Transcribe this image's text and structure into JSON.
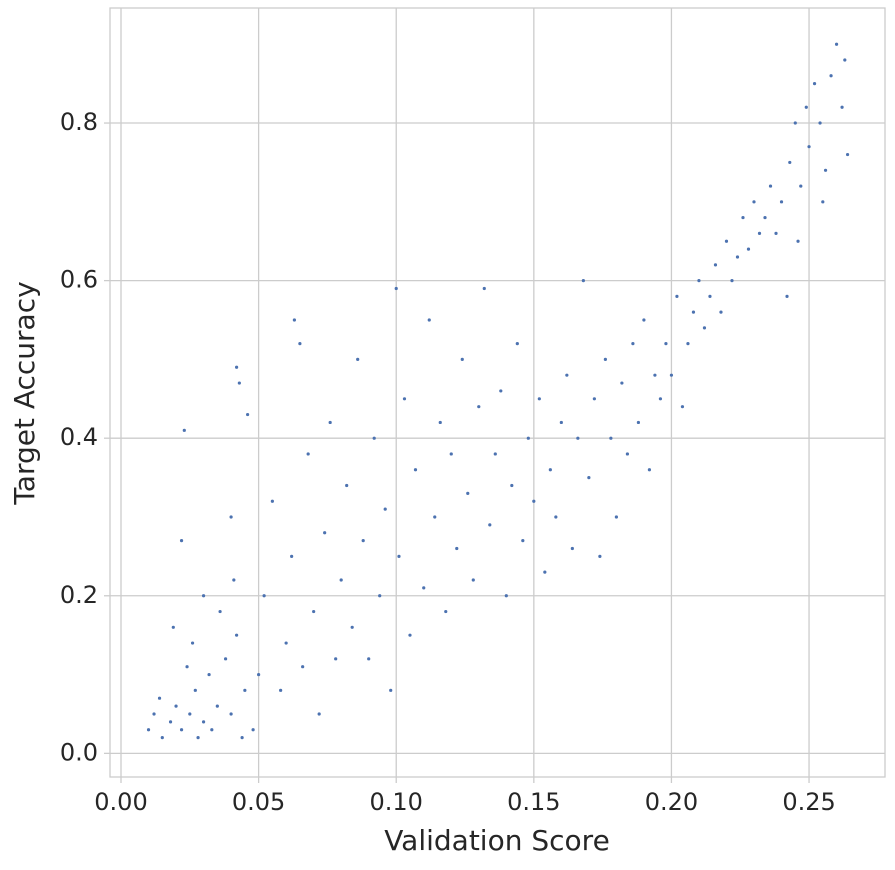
{
  "chart_data": {
    "type": "scatter",
    "xlabel": "Validation Score",
    "ylabel": "Target Accuracy",
    "xlim": [
      -0.004,
      0.2776
    ],
    "ylim": [
      -0.03,
      0.946
    ],
    "xticks": [
      {
        "value": 0,
        "label": "0.00"
      },
      {
        "value": 0.05,
        "label": "0.05"
      },
      {
        "value": 0.1,
        "label": "0.10"
      },
      {
        "value": 0.15,
        "label": "0.15"
      },
      {
        "value": 0.2,
        "label": "0.20"
      },
      {
        "value": 0.25,
        "label": "0.25"
      }
    ],
    "yticks": [
      {
        "value": 0,
        "label": "0.0"
      },
      {
        "value": 0.2,
        "label": "0.2"
      },
      {
        "value": 0.4,
        "label": "0.4"
      },
      {
        "value": 0.6,
        "label": "0.6"
      },
      {
        "value": 0.8,
        "label": "0.8"
      }
    ],
    "grid": true,
    "color": "#4c72b0",
    "x": [
      0.01,
      0.012,
      0.015,
      0.018,
      0.02,
      0.022,
      0.025,
      0.027,
      0.03,
      0.032,
      0.035,
      0.038,
      0.04,
      0.042,
      0.045,
      0.048,
      0.014,
      0.028,
      0.033,
      0.044,
      0.024,
      0.036,
      0.041,
      0.03,
      0.026,
      0.019,
      0.022,
      0.023,
      0.042,
      0.043,
      0.046,
      0.04,
      0.05,
      0.052,
      0.055,
      0.058,
      0.06,
      0.062,
      0.063,
      0.065,
      0.066,
      0.068,
      0.07,
      0.072,
      0.074,
      0.076,
      0.078,
      0.08,
      0.082,
      0.084,
      0.086,
      0.088,
      0.09,
      0.092,
      0.094,
      0.096,
      0.098,
      0.1,
      0.101,
      0.103,
      0.105,
      0.107,
      0.11,
      0.112,
      0.114,
      0.116,
      0.118,
      0.12,
      0.122,
      0.124,
      0.126,
      0.128,
      0.13,
      0.132,
      0.134,
      0.136,
      0.138,
      0.14,
      0.142,
      0.144,
      0.146,
      0.148,
      0.15,
      0.152,
      0.154,
      0.156,
      0.158,
      0.16,
      0.162,
      0.164,
      0.166,
      0.168,
      0.17,
      0.172,
      0.174,
      0.176,
      0.178,
      0.18,
      0.182,
      0.184,
      0.186,
      0.188,
      0.19,
      0.192,
      0.194,
      0.196,
      0.198,
      0.2,
      0.202,
      0.204,
      0.206,
      0.208,
      0.21,
      0.212,
      0.214,
      0.216,
      0.218,
      0.22,
      0.222,
      0.224,
      0.226,
      0.228,
      0.23,
      0.232,
      0.234,
      0.236,
      0.238,
      0.24,
      0.242,
      0.243,
      0.245,
      0.247,
      0.249,
      0.25,
      0.252,
      0.254,
      0.256,
      0.258,
      0.26,
      0.262,
      0.263,
      0.264,
      0.246,
      0.255
    ],
    "y": [
      0.03,
      0.05,
      0.02,
      0.04,
      0.06,
      0.03,
      0.05,
      0.08,
      0.04,
      0.1,
      0.06,
      0.12,
      0.05,
      0.15,
      0.08,
      0.03,
      0.07,
      0.02,
      0.03,
      0.02,
      0.11,
      0.18,
      0.22,
      0.2,
      0.14,
      0.16,
      0.27,
      0.41,
      0.49,
      0.47,
      0.43,
      0.3,
      0.1,
      0.2,
      0.32,
      0.08,
      0.14,
      0.25,
      0.55,
      0.52,
      0.11,
      0.38,
      0.18,
      0.05,
      0.28,
      0.42,
      0.12,
      0.22,
      0.34,
      0.16,
      0.5,
      0.27,
      0.12,
      0.4,
      0.2,
      0.31,
      0.08,
      0.59,
      0.25,
      0.45,
      0.15,
      0.36,
      0.21,
      0.55,
      0.3,
      0.42,
      0.18,
      0.38,
      0.26,
      0.5,
      0.33,
      0.22,
      0.44,
      0.59,
      0.29,
      0.38,
      0.46,
      0.2,
      0.34,
      0.52,
      0.27,
      0.4,
      0.32,
      0.45,
      0.23,
      0.36,
      0.3,
      0.42,
      0.48,
      0.26,
      0.4,
      0.6,
      0.35,
      0.45,
      0.25,
      0.5,
      0.4,
      0.3,
      0.47,
      0.38,
      0.52,
      0.42,
      0.55,
      0.36,
      0.48,
      0.45,
      0.52,
      0.48,
      0.58,
      0.44,
      0.52,
      0.56,
      0.6,
      0.54,
      0.58,
      0.62,
      0.56,
      0.65,
      0.6,
      0.63,
      0.68,
      0.64,
      0.7,
      0.66,
      0.68,
      0.72,
      0.66,
      0.7,
      0.58,
      0.75,
      0.8,
      0.72,
      0.82,
      0.77,
      0.85,
      0.8,
      0.74,
      0.86,
      0.9,
      0.82,
      0.88,
      0.76,
      0.65,
      0.7
    ]
  }
}
